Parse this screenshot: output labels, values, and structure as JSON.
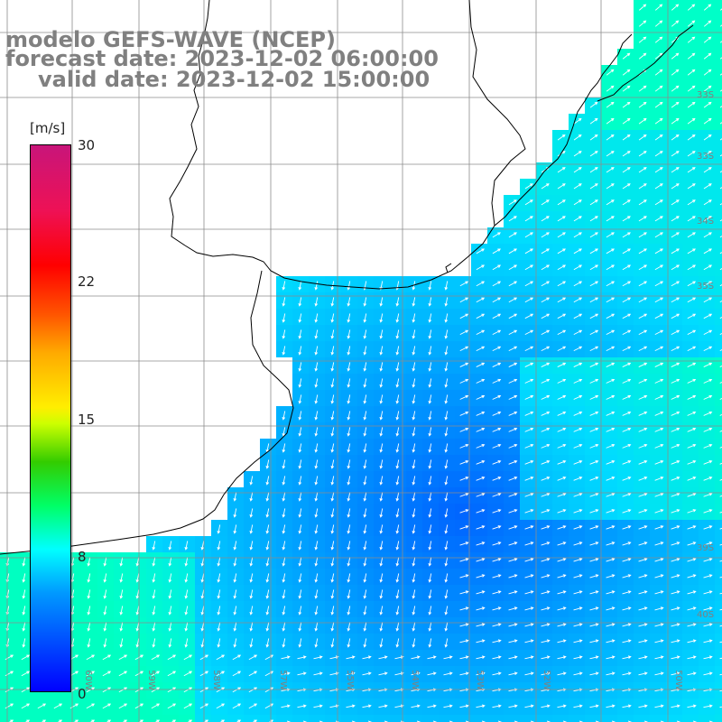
{
  "title": {
    "model": "modelo GEFS-WAVE (NCEP)",
    "forecast": "forecast date: 2023-12-02 06:00:00",
    "valid": "valid date: 2023-12-02 15:00:00"
  },
  "colorbar": {
    "units": "[m/s]",
    "ticks": [
      "30",
      "22",
      "15",
      "8",
      "0"
    ],
    "range": [
      0,
      30
    ],
    "colors": [
      "#0000ff",
      "#0099ff",
      "#00ffff",
      "#00ff66",
      "#ccff00",
      "#ffee00",
      "#ff5500",
      "#ff0000",
      "#c8157a"
    ]
  },
  "grid_labels": {
    "latitudes": [
      "33S",
      "34S",
      "35S",
      "39S",
      "40S"
    ],
    "longitudes": [
      "60W",
      "59W",
      "58W",
      "57W",
      "55W",
      "54W",
      "53W",
      "52W",
      "50W"
    ]
  },
  "field": "wind speed with direction arrows",
  "land_color": "#ffffff",
  "coastline_color": "#000000",
  "grid_color": "#808080"
}
